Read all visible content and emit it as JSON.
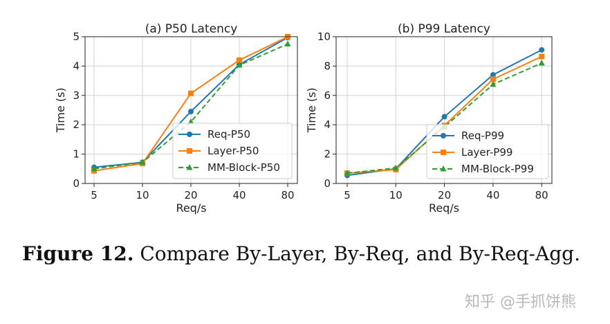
{
  "chart_data": [
    {
      "type": "line",
      "title": "(a) P50 Latency",
      "xlabel": "Req/s",
      "ylabel": "Time (s)",
      "categories": [
        "5",
        "10",
        "20",
        "40",
        "80"
      ],
      "ylim": [
        0,
        5
      ],
      "yticks": [
        "0",
        "1",
        "2",
        "3",
        "4",
        "5"
      ],
      "grid": true,
      "legend_placement": "lower-right",
      "series": [
        {
          "name": "Req-P50",
          "values": [
            0.55,
            0.72,
            2.45,
            4.05,
            4.97
          ],
          "color": "#1f77b4",
          "marker": "circle",
          "dash": false
        },
        {
          "name": "Layer-P50",
          "values": [
            0.43,
            0.68,
            3.07,
            4.2,
            5.0
          ],
          "color": "#ff7f0e",
          "marker": "square",
          "dash": false
        },
        {
          "name": "MM-Block-P50",
          "values": [
            0.5,
            0.72,
            2.1,
            4.03,
            4.75
          ],
          "color": "#2ca02c",
          "marker": "triangle",
          "dash": true
        }
      ]
    },
    {
      "type": "line",
      "title": "(b) P99 Latency",
      "xlabel": "Req/s",
      "ylabel": "Time (s)",
      "categories": [
        "5",
        "10",
        "20",
        "40",
        "80"
      ],
      "ylim": [
        0,
        10
      ],
      "yticks": [
        "0",
        "2",
        "4",
        "6",
        "8",
        "10"
      ],
      "grid": true,
      "legend_placement": "lower-right",
      "series": [
        {
          "name": "Req-P99",
          "values": [
            0.55,
            1.0,
            4.55,
            7.4,
            9.1
          ],
          "color": "#1f77b4",
          "marker": "circle",
          "dash": false
        },
        {
          "name": "Layer-P99",
          "values": [
            0.7,
            0.95,
            3.95,
            7.1,
            8.65
          ],
          "color": "#ff7f0e",
          "marker": "square",
          "dash": false
        },
        {
          "name": "MM-Block-P99",
          "values": [
            0.7,
            1.05,
            3.85,
            6.75,
            8.2
          ],
          "color": "#2ca02c",
          "marker": "triangle",
          "dash": true
        }
      ]
    }
  ],
  "caption": {
    "label": "Figure 12.",
    "text": " Compare By-Layer, By-Req, and By-Req-Agg."
  },
  "watermark": "知乎 @手抓饼熊"
}
